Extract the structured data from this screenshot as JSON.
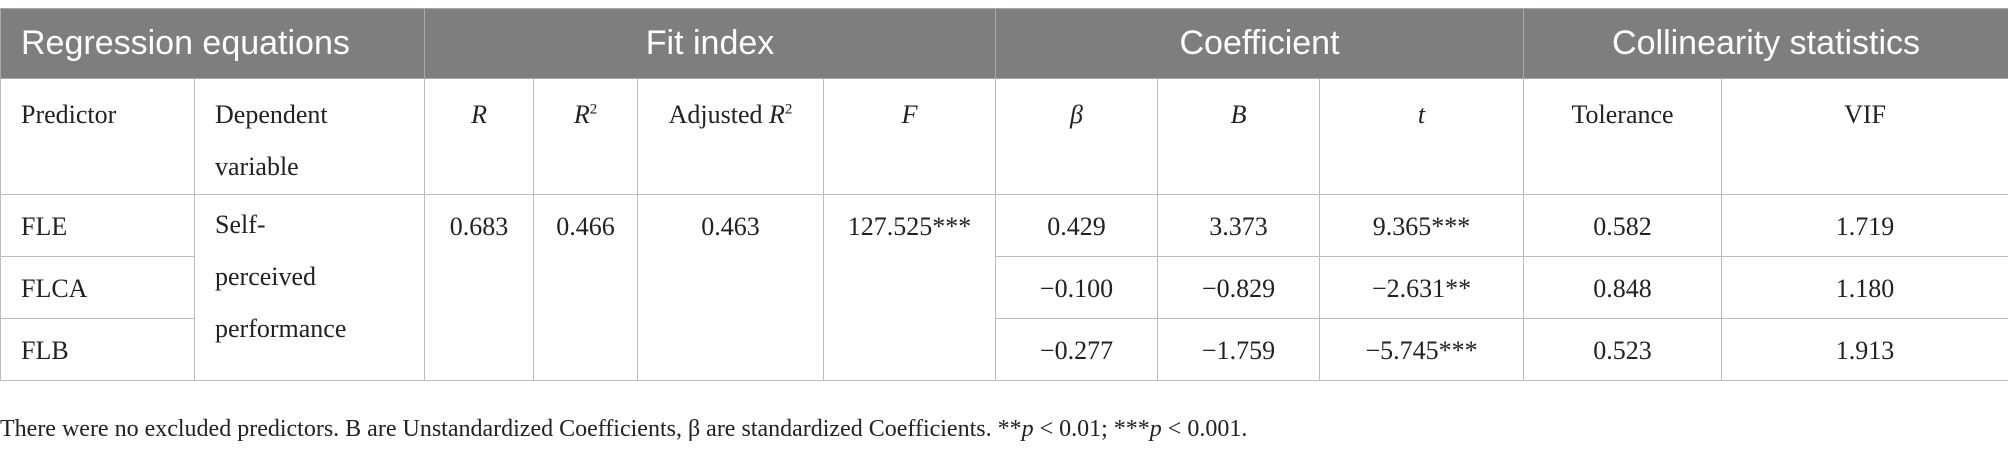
{
  "group_headers": {
    "regression": "Regression equations",
    "fit": "Fit index",
    "coefficient": "Coefficient",
    "collinearity": "Collinearity statistics"
  },
  "column_headers": {
    "predictor": "Predictor",
    "dependent": "Dependent variable",
    "r": "R",
    "r2_base": "R",
    "r2_sup": "2",
    "adj_prefix": "Adjusted ",
    "adj_base": "R",
    "adj_sup": "2",
    "f": "F",
    "beta": "β",
    "b": "B",
    "t": "t",
    "tolerance": "Tolerance",
    "vif": "VIF"
  },
  "shared": {
    "dependent": "Self-perceived performance",
    "r": "0.683",
    "r2": "0.466",
    "adj_r2": "0.463",
    "f": "127.525***"
  },
  "rows": [
    {
      "predictor": "FLE",
      "beta": "0.429",
      "b": "3.373",
      "t": "9.365***",
      "tolerance": "0.582",
      "vif": "1.719"
    },
    {
      "predictor": "FLCA",
      "beta": "−0.100",
      "b": "−0.829",
      "t": "−2.631**",
      "tolerance": "0.848",
      "vif": "1.180"
    },
    {
      "predictor": "FLB",
      "beta": "−0.277",
      "b": "−1.759",
      "t": "−5.745***",
      "tolerance": "0.523",
      "vif": "1.913"
    }
  ],
  "note": {
    "text_a": "There were no excluded predictors. B are Unstandardized Coefficients, β are standardized Coefficients. **",
    "p1": "p",
    "text_b": " < 0.01; ***",
    "p2": "p",
    "text_c": " < 0.001."
  }
}
